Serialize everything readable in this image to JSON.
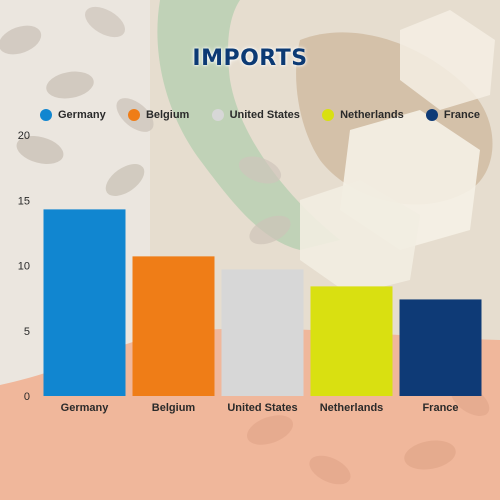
{
  "title": "IMPORTS",
  "colors": {
    "germany": "#1186d0",
    "belgium": "#ef7d17",
    "united_states": "#d7d7d7",
    "netherlands": "#d9e011",
    "france": "#0e3a76",
    "title": "#0c3a74"
  },
  "legend": [
    {
      "label": "Germany",
      "color": "#1186d0"
    },
    {
      "label": "Belgium",
      "color": "#ef7d17"
    },
    {
      "label": "United States",
      "color": "#d7d7d7"
    },
    {
      "label": "Netherlands",
      "color": "#d9e011"
    },
    {
      "label": "France",
      "color": "#0e3a76"
    }
  ],
  "chart_data": {
    "type": "bar",
    "title": "IMPORTS",
    "xlabel": "",
    "ylabel": "",
    "categories": [
      "Germany",
      "Belgium",
      "United States",
      "Netherlands",
      "France"
    ],
    "values": [
      14.3,
      10.7,
      9.7,
      8.4,
      7.4
    ],
    "colors": [
      "#1186d0",
      "#ef7d17",
      "#d7d7d7",
      "#d9e011",
      "#0e3a76"
    ],
    "ylim": [
      0,
      20
    ],
    "yticks": [
      "0",
      "5",
      "10",
      "15",
      "20"
    ],
    "grid": false,
    "legend_position": "top"
  }
}
